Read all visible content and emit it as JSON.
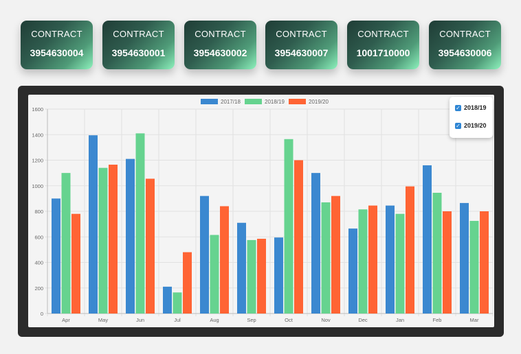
{
  "cards": [
    {
      "label": "CONTRACT",
      "value": "3954630004"
    },
    {
      "label": "CONTRACT",
      "value": "3954630001"
    },
    {
      "label": "CONTRACT",
      "value": "3954630002"
    },
    {
      "label": "CONTRACT",
      "value": "3954630007"
    },
    {
      "label": "CONTRACT",
      "value": "1001710000"
    },
    {
      "label": "CONTRACT",
      "value": "3954630006"
    }
  ],
  "toggles": [
    {
      "label": "2018/19",
      "checked": true,
      "check_glyph": "✓"
    },
    {
      "label": "2019/20",
      "checked": true,
      "check_glyph": "✓"
    }
  ],
  "chart_data": {
    "type": "bar",
    "title": "",
    "xlabel": "",
    "ylabel": "",
    "categories": [
      "Apr",
      "May",
      "Jun",
      "Jul",
      "Aug",
      "Sep",
      "Oct",
      "Nov",
      "Dec",
      "Jan",
      "Feb",
      "Mar"
    ],
    "series": [
      {
        "name": "2017/18",
        "color": "#3b88d0",
        "values": [
          900,
          1395,
          1210,
          210,
          920,
          710,
          595,
          1100,
          665,
          845,
          1160,
          865
        ]
      },
      {
        "name": "2018/19",
        "color": "#66d38f",
        "values": [
          1100,
          1140,
          1410,
          165,
          615,
          575,
          1365,
          870,
          815,
          780,
          945,
          725
        ]
      },
      {
        "name": "2019/20",
        "color": "#ff6434",
        "values": [
          780,
          1165,
          1055,
          480,
          840,
          585,
          1200,
          920,
          845,
          995,
          800,
          800
        ]
      }
    ],
    "ylim": [
      0,
      1600
    ],
    "yticks": [
      0,
      200,
      400,
      600,
      800,
      1000,
      1200,
      1400,
      1600
    ],
    "grid": true,
    "legend": "top-center"
  }
}
